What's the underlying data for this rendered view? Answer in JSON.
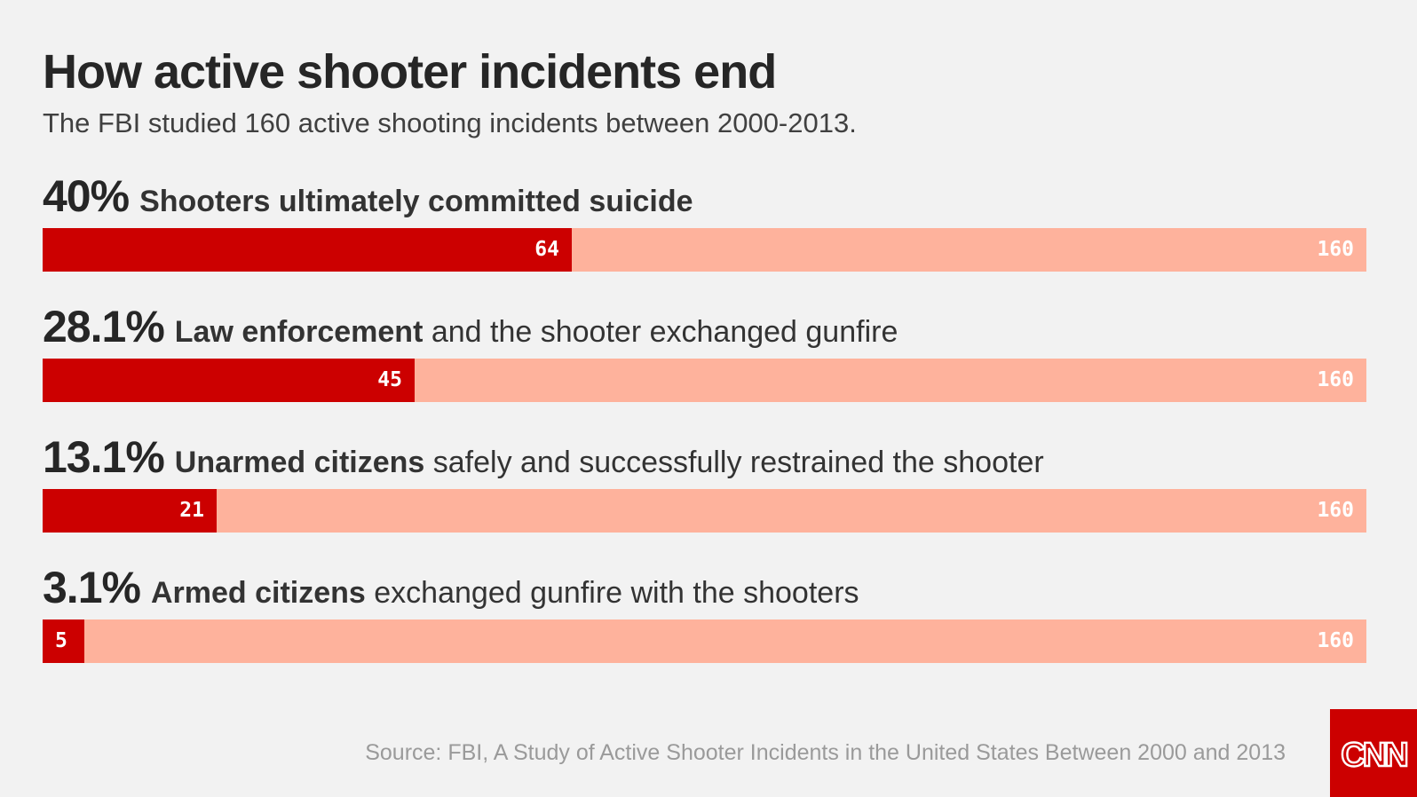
{
  "title": "How active shooter incidents end",
  "subtitle": "The FBI studied 160 active shooting incidents between 2000-2013.",
  "source": "Source: FBI, A Study of Active Shooter Incidents in the United States Between 2000 and 2013",
  "logo_text": "CNN",
  "colors": {
    "fill": "#cc0000",
    "track": "#feb29c",
    "background": "#f2f2f2"
  },
  "rows": [
    {
      "pct": "40%",
      "bold": "Shooters ultimately committed suicide",
      "rest": "",
      "value": "64",
      "total": "160"
    },
    {
      "pct": "28.1%",
      "bold": "Law enforcement",
      "rest": " and the shooter exchanged gunfire",
      "value": "45",
      "total": "160"
    },
    {
      "pct": "13.1%",
      "bold": "Unarmed citizens",
      "rest": " safely and successfully restrained the shooter",
      "value": "21",
      "total": "160"
    },
    {
      "pct": "3.1%",
      "bold": "Armed citizens",
      "rest": " exchanged gunfire with the shooters",
      "value": "5",
      "total": "160"
    }
  ],
  "chart_data": {
    "type": "bar",
    "categories": [
      "Shooters ultimately committed suicide",
      "Law enforcement and the shooter exchanged gunfire",
      "Unarmed citizens safely and successfully restrained the shooter",
      "Armed citizens exchanged gunfire with the shooters"
    ],
    "values": [
      64,
      45,
      21,
      5
    ],
    "percent_labels": [
      "40%",
      "28.1%",
      "13.1%",
      "3.1%"
    ],
    "total": 160,
    "orientation": "horizontal",
    "xlim": [
      0,
      160
    ],
    "grid": false,
    "legend": "none"
  }
}
